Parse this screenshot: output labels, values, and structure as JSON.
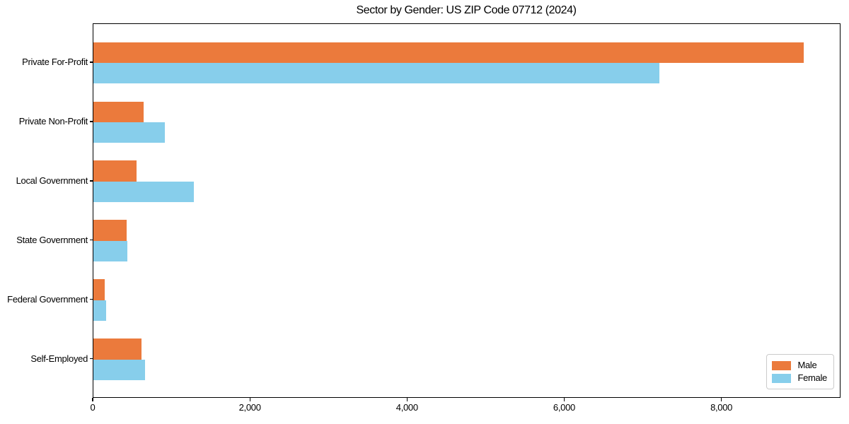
{
  "figure": {
    "background": "#ffffff",
    "axis_color": "#000000"
  },
  "chart_data": {
    "type": "bar",
    "orientation": "horizontal",
    "title": "Sector by Gender: US ZIP Code 07712 (2024)",
    "categories": [
      "Private For-Profit",
      "Private Non-Profit",
      "Local Government",
      "State Government",
      "Federal Government",
      "Self-Employed"
    ],
    "series": [
      {
        "name": "Male",
        "color": "#eb7a3c",
        "values": [
          9060,
          640,
          550,
          420,
          140,
          610
        ]
      },
      {
        "name": "Female",
        "color": "#87ceeb",
        "values": [
          7220,
          915,
          1285,
          430,
          160,
          660
        ]
      }
    ],
    "xlabel": "",
    "ylabel": "",
    "xlim": [
      0,
      9516
    ],
    "x_ticks": [
      0,
      2000,
      4000,
      6000,
      8000
    ],
    "x_tick_labels": [
      "0",
      "2,000",
      "4,000",
      "6,000",
      "8,000"
    ],
    "grid": false,
    "legend": {
      "position": "lower right",
      "entries": [
        "Male",
        "Female"
      ]
    }
  }
}
